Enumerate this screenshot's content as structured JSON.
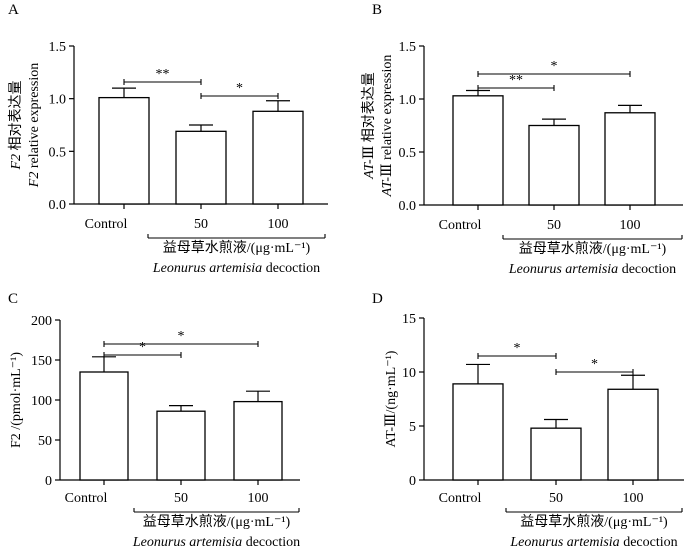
{
  "chart_data": [
    {
      "panel": "A",
      "type": "bar",
      "categories": [
        "Control",
        "50",
        "100"
      ],
      "values": [
        1.01,
        0.69,
        0.88
      ],
      "errors": [
        0.09,
        0.06,
        0.1
      ],
      "ylim": [
        0,
        1.5
      ],
      "yticks": [
        "0.0",
        "0.5",
        "1.0",
        "1.5"
      ],
      "ylabel_lines": [
        [
          "F2",
          " 相对表达量"
        ],
        [
          "F2",
          " relative expression"
        ]
      ],
      "xlabel_line1": "益母草水煎液/(μg·mL⁻¹)",
      "xlabel_line2_italic": "Leonurus artemisia",
      "xlabel_line2_rest": " decoction",
      "significance": [
        {
          "from": 0,
          "to": 1,
          "label": "**"
        },
        {
          "from": 1,
          "to": 2,
          "label": "*"
        }
      ]
    },
    {
      "panel": "B",
      "type": "bar",
      "categories": [
        "Control",
        "50",
        "100"
      ],
      "values": [
        1.03,
        0.75,
        0.87
      ],
      "errors": [
        0.05,
        0.06,
        0.07
      ],
      "ylim": [
        0,
        1.5
      ],
      "yticks": [
        "0.0",
        "0.5",
        "1.0",
        "1.5"
      ],
      "ylabel_lines": [
        [
          "AT-",
          "Ⅲ 相对表达量"
        ],
        [
          "AT-",
          "Ⅲ relative expression"
        ]
      ],
      "xlabel_line1": "益母草水煎液/(μg·mL⁻¹)",
      "xlabel_line2_italic": "Leonurus artemisia",
      "xlabel_line2_rest": " decoction",
      "significance": [
        {
          "from": 0,
          "to": 2,
          "label": "*"
        },
        {
          "from": 0,
          "to": 1,
          "label": "**"
        }
      ]
    },
    {
      "panel": "C",
      "type": "bar",
      "categories": [
        "Control",
        "50",
        "100"
      ],
      "values": [
        135,
        86,
        98
      ],
      "errors": [
        19,
        7,
        13
      ],
      "ylim": [
        0,
        200
      ],
      "yticks": [
        "0",
        "50",
        "100",
        "150",
        "200"
      ],
      "ylabel_lines": [
        [
          "",
          "F2 /(pmol·mL⁻¹)"
        ]
      ],
      "xlabel_line1": "益母草水煎液/(μg·mL⁻¹)",
      "xlabel_line2_italic": "Leonurus artemisia",
      "xlabel_line2_rest": " decoction",
      "significance": [
        {
          "from": 0,
          "to": 2,
          "label": "*"
        },
        {
          "from": 0,
          "to": 1,
          "label": "*"
        }
      ]
    },
    {
      "panel": "D",
      "type": "bar",
      "categories": [
        "Control",
        "50",
        "100"
      ],
      "values": [
        8.9,
        4.8,
        8.4
      ],
      "errors": [
        1.8,
        0.8,
        1.3
      ],
      "ylim": [
        0,
        15
      ],
      "yticks": [
        "0",
        "5",
        "10",
        "15"
      ],
      "ylabel_lines": [
        [
          "",
          "AT-Ⅲ/(ng·mL⁻¹)"
        ]
      ],
      "xlabel_line1": "益母草水煎液/(μg·mL⁻¹)",
      "xlabel_line2_italic": "Leonurus artemisia",
      "xlabel_line2_rest": " decoction",
      "significance": [
        {
          "from": 0,
          "to": 1,
          "label": "*"
        },
        {
          "from": 1,
          "to": 2,
          "label": "*"
        }
      ]
    }
  ]
}
